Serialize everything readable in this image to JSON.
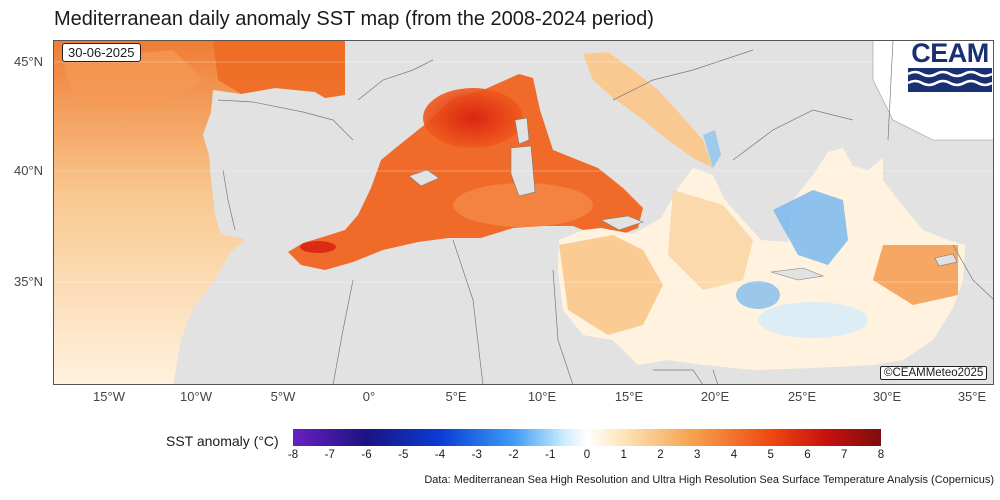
{
  "title": "Mediterranean daily anomaly SST map (from the 2008-2024 period)",
  "date": "30-06-2025",
  "credit": "©CEAMMeteo2025",
  "logo_text": "CEAM",
  "lat_labels": [
    "45°N",
    "40°N",
    "35°N"
  ],
  "lon_labels": [
    "15°W",
    "10°W",
    "5°W",
    "0°",
    "5°E",
    "10°E",
    "15°E",
    "20°E",
    "25°E",
    "30°E",
    "35°E"
  ],
  "legend": {
    "title": "SST anomaly (°C)",
    "ticks": [
      "-8",
      "-7",
      "-6",
      "-5",
      "-4",
      "-3",
      "-2",
      "-1",
      "0",
      "1",
      "2",
      "3",
      "4",
      "5",
      "6",
      "7",
      "8"
    ]
  },
  "source": "Data: Mediterranean Sea High Resolution and Ultra High Resolution Sea Surface Temperature Analysis (Copernicus)",
  "colors": {
    "land": "#e2e2e2",
    "border": "#7a7a7a",
    "warm": "#e8501a",
    "mild": "#f6b978",
    "cool": "#6cb6ee",
    "neutral": "#fff6e6"
  }
}
